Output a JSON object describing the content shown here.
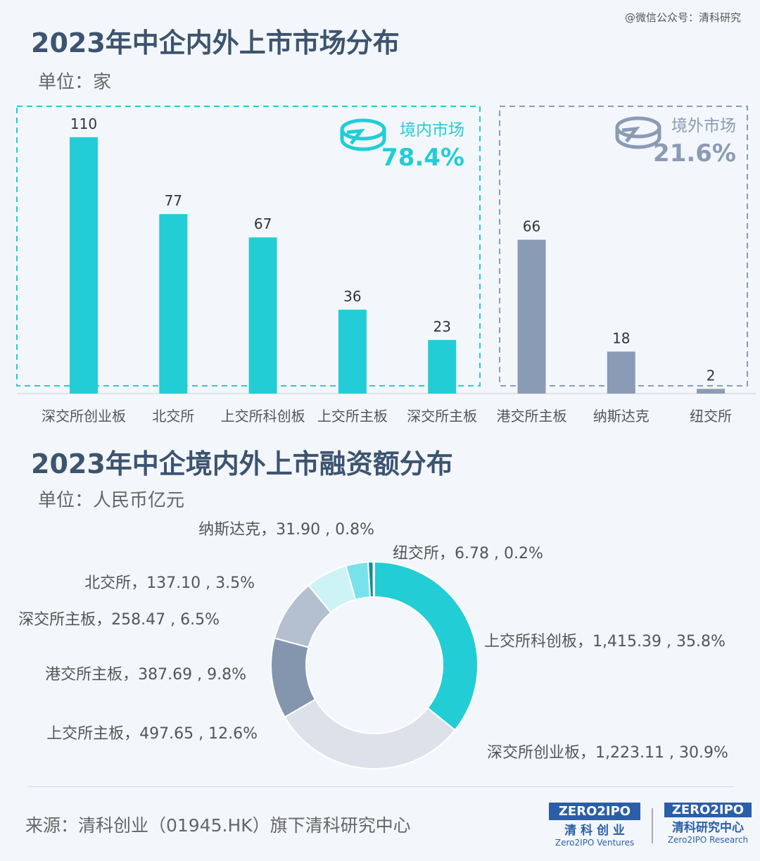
{
  "watermark": "@微信公众号：清科研究",
  "chart1": {
    "title": "2023年中企内外上市市场分布",
    "unit": "单位：家"
  },
  "chart2": {
    "title": "2023年中企境内外上市融资额分布",
    "unit": "单位：人民币亿元"
  },
  "domestic": {
    "label": "境内市场",
    "pct": "78.4%",
    "color": "#22cdd6"
  },
  "overseas": {
    "label": "境外市场",
    "pct": "21.6%",
    "color": "#8a9bb5"
  },
  "source": "来源：清科创业（01945.HK）旗下清科研究中心",
  "logos": {
    "left_cn": "清 科 创 业",
    "left_en": "Zero2IPO Ventures",
    "right_cn": "清科研究中心",
    "right_en": "Zero2IPO Research",
    "brand": "ZERO2IPO"
  },
  "chart_data": [
    {
      "type": "bar",
      "categories": [
        "深交所创业板",
        "北交所",
        "上交所科创板",
        "上交所主板",
        "深交所主板",
        "港交所主板",
        "纳斯达克",
        "纽交所"
      ],
      "values": [
        110,
        77,
        67,
        36,
        23,
        66,
        18,
        2
      ],
      "groups": [
        "domestic",
        "domestic",
        "domestic",
        "domestic",
        "domestic",
        "overseas",
        "overseas",
        "overseas"
      ]
    },
    {
      "type": "pie",
      "donut": true,
      "slices": [
        {
          "label": "上交所科创板",
          "value": 1415.39,
          "pct": "35.8%",
          "text": "1,415.39",
          "color": "#22cdd6"
        },
        {
          "label": "深交所创业板",
          "value": 1223.11,
          "pct": "30.9%",
          "text": "1,223.11",
          "color": "#dde1ea"
        },
        {
          "label": "上交所主板",
          "value": 497.65,
          "pct": "12.6%",
          "text": "497.65",
          "color": "#8396ae"
        },
        {
          "label": "港交所主板",
          "value": 387.69,
          "pct": "9.8%",
          "text": "387.69",
          "color": "#b4bfcf"
        },
        {
          "label": "深交所主板",
          "value": 258.47,
          "pct": "6.5%",
          "text": "258.47",
          "color": "#cdf3f5"
        },
        {
          "label": "北交所",
          "value": 137.1,
          "pct": "3.5%",
          "text": "137.10",
          "color": "#78e2ea"
        },
        {
          "label": "纳斯达克",
          "value": 31.9,
          "pct": "0.8%",
          "text": "31.90",
          "color": "#178b92"
        },
        {
          "label": "纽交所",
          "value": 6.78,
          "pct": "0.2%",
          "text": "6.78",
          "color": "#e8f4f8"
        }
      ]
    }
  ]
}
